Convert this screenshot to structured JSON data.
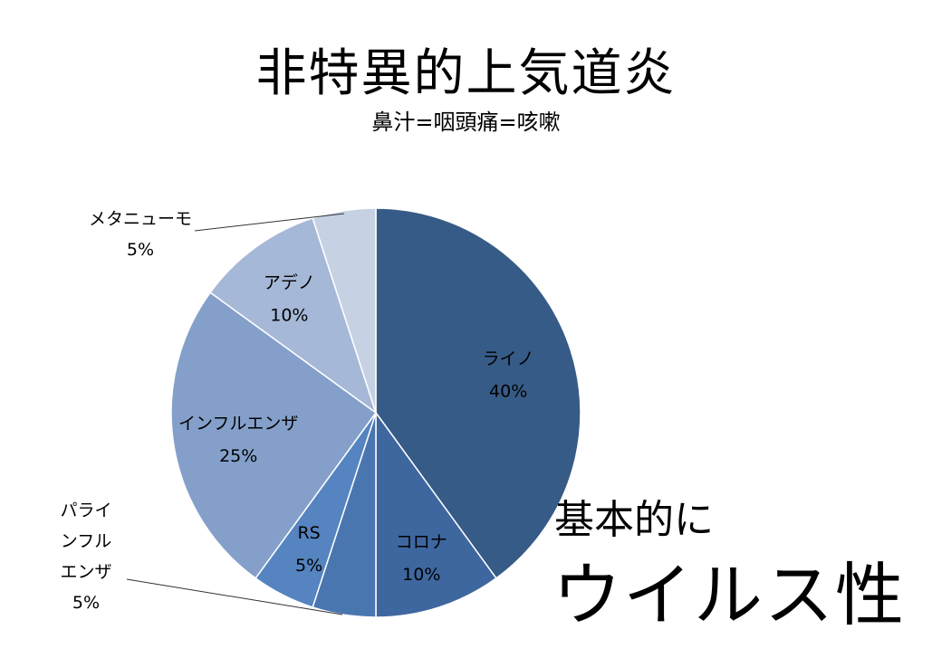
{
  "header": {
    "title": "非特異的上気道炎",
    "subtitle": "鼻汁=咽頭痛=咳嗽"
  },
  "callout": {
    "line1": "基本的に",
    "line2": "ウイルス性"
  },
  "chart_data": {
    "type": "pie",
    "title": "非特異的上気道炎",
    "slices": [
      {
        "label": "ライノ",
        "value": 40,
        "value_label": "40%",
        "color": "#375b87"
      },
      {
        "label": "コロナ",
        "value": 10,
        "value_label": "10%",
        "color": "#3e67a0"
      },
      {
        "label": "パラインフルエンザ",
        "label_lines": [
          "パライ",
          "ンフル",
          "エンザ"
        ],
        "value": 5,
        "value_label": "5%",
        "color": "#4a76b0",
        "external": true
      },
      {
        "label": "RS",
        "value": 5,
        "value_label": "5%",
        "color": "#5584c0"
      },
      {
        "label": "インフルエンザ",
        "value": 25,
        "value_label": "25%",
        "color": "#84a0ca"
      },
      {
        "label": "アデノ",
        "value": 10,
        "value_label": "10%",
        "color": "#a6b8d7"
      },
      {
        "label": "メタニューモ",
        "value": 5,
        "value_label": "5%",
        "color": "#c6d2e4",
        "external": true
      }
    ],
    "start_angle_deg": -90,
    "direction": "clockwise",
    "legend": "none",
    "data_labels": "inside"
  }
}
